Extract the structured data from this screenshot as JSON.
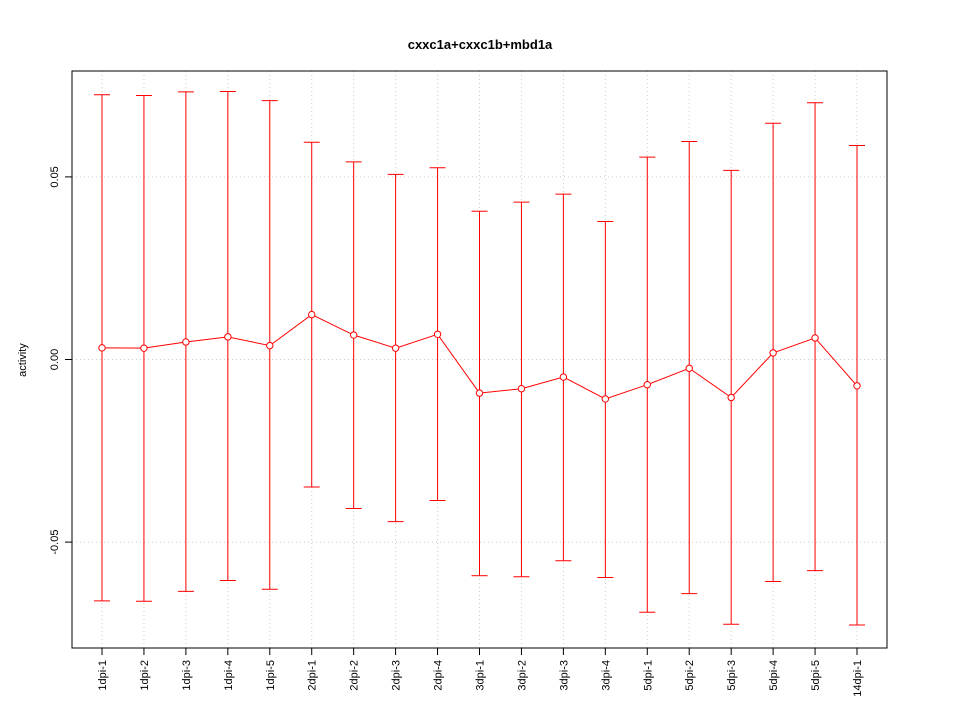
{
  "chart_data": {
    "type": "line",
    "title": "cxxc1a+cxxc1b+mbd1a",
    "xlabel": "",
    "ylabel": "activity",
    "ylim": [
      -0.079,
      0.079
    ],
    "yticks": [
      -0.05,
      0.0,
      0.05
    ],
    "ytick_labels": [
      "-0.05",
      "0.00",
      "0.05"
    ],
    "grid": true,
    "legend": "none",
    "color": "#ff0000",
    "categories": [
      "1dpi-1",
      "1dpi-2",
      "1dpi-3",
      "1dpi-4",
      "1dpi-5",
      "2dpi-1",
      "2dpi-2",
      "2dpi-3",
      "2dpi-4",
      "3dpi-1",
      "3dpi-2",
      "3dpi-3",
      "3dpi-4",
      "5dpi-1",
      "5dpi-2",
      "5dpi-3",
      "5dpi-4",
      "5dpi-5",
      "14dpi-1"
    ],
    "series": [
      {
        "values": [
          0.0032,
          0.0031,
          0.0048,
          0.0062,
          0.0038,
          0.0123,
          0.0067,
          0.0031,
          0.0069,
          -0.0092,
          -0.008,
          -0.0048,
          -0.0108,
          -0.0069,
          -0.0024,
          -0.0104,
          0.0018,
          0.0059,
          -0.0072
        ],
        "upper": [
          0.0725,
          0.0723,
          0.0733,
          0.0734,
          0.0709,
          0.0595,
          0.0541,
          0.0507,
          0.0525,
          0.0406,
          0.0431,
          0.0453,
          0.0378,
          0.0554,
          0.0597,
          0.0518,
          0.0647,
          0.0703,
          0.0586
        ],
        "lower": [
          -0.0661,
          -0.0662,
          -0.0635,
          -0.0605,
          -0.0629,
          -0.0349,
          -0.0408,
          -0.0444,
          -0.0386,
          -0.0592,
          -0.0595,
          -0.0551,
          -0.0597,
          -0.0692,
          -0.0641,
          -0.0725,
          -0.0608,
          -0.0578,
          -0.0727
        ]
      }
    ]
  }
}
